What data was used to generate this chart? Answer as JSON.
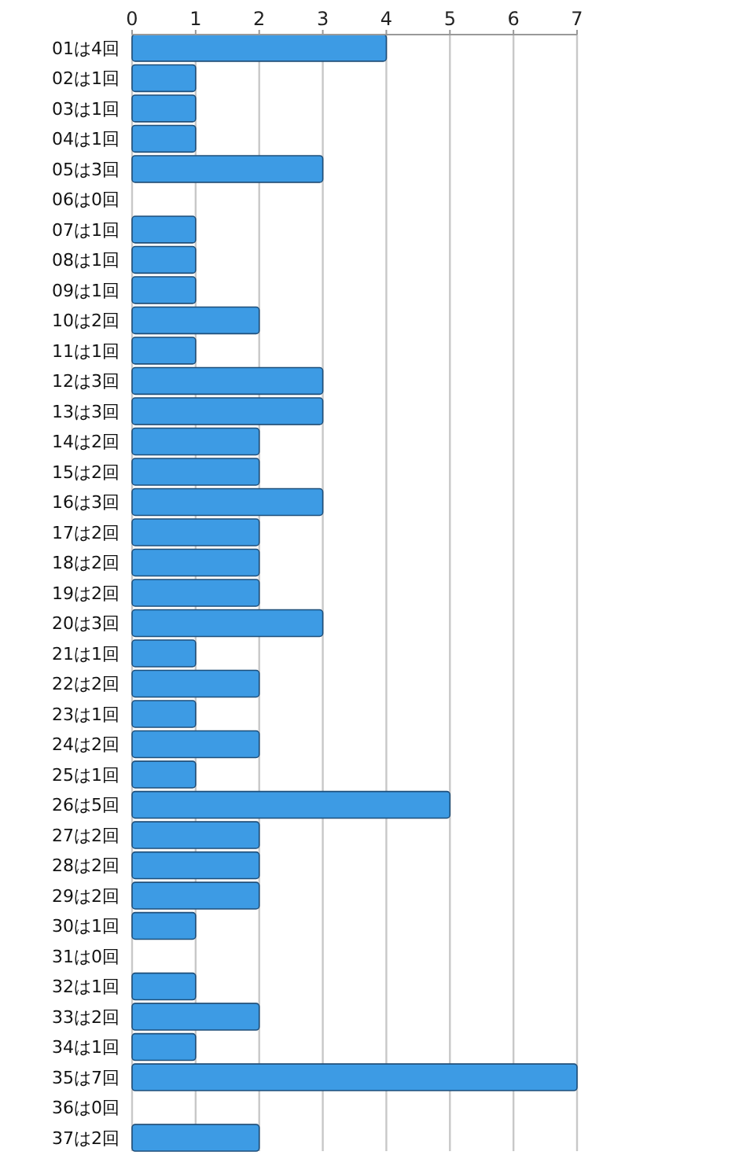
{
  "chart_data": {
    "type": "bar",
    "orientation": "horizontal",
    "categories": [
      "01は4回",
      "02は1回",
      "03は1回",
      "04は1回",
      "05は3回",
      "06は0回",
      "07は1回",
      "08は1回",
      "09は1回",
      "10は2回",
      "11は1回",
      "12は3回",
      "13は3回",
      "14は2回",
      "15は2回",
      "16は3回",
      "17は2回",
      "18は2回",
      "19は2回",
      "20は3回",
      "21は1回",
      "22は2回",
      "23は1回",
      "24は2回",
      "25は1回",
      "26は5回",
      "27は2回",
      "28は2回",
      "29は2回",
      "30は1回",
      "31は0回",
      "32は1回",
      "33は2回",
      "34は1回",
      "35は7回",
      "36は0回",
      "37は2回"
    ],
    "values": [
      4,
      1,
      1,
      1,
      3,
      0,
      1,
      1,
      1,
      2,
      1,
      3,
      3,
      2,
      2,
      3,
      2,
      2,
      2,
      3,
      1,
      2,
      1,
      2,
      1,
      5,
      2,
      2,
      2,
      1,
      0,
      1,
      2,
      1,
      7,
      0,
      2
    ],
    "color": "#3d9be4",
    "xlim": [
      0,
      7
    ],
    "xticks": [
      0,
      1,
      2,
      3,
      4,
      5,
      6,
      7
    ],
    "grid": "x"
  }
}
